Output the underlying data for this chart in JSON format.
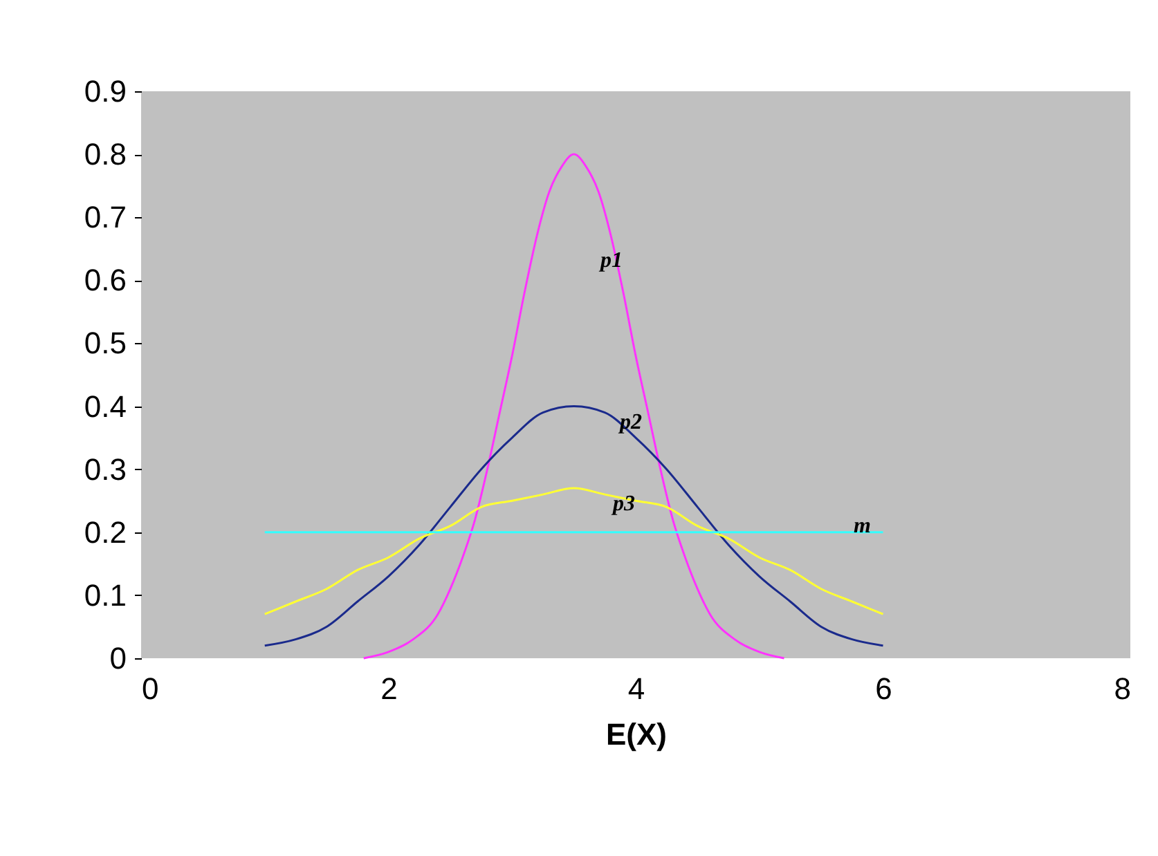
{
  "chart_data": {
    "type": "line",
    "xlabel": "E(X)",
    "xlim": [
      0,
      8
    ],
    "xticks": [
      0,
      2,
      4,
      6,
      8
    ],
    "ylim": [
      0,
      0.9
    ],
    "yticks": [
      0,
      0.1,
      0.2,
      0.3,
      0.4,
      0.5,
      0.6,
      0.7,
      0.8,
      0.9
    ],
    "grid": false,
    "legend": false,
    "marker": "none",
    "line_style": "solid",
    "series": [
      {
        "name": "p1",
        "color": "#ff33ff",
        "x": [
          1.8,
          2.0,
          2.2,
          2.4,
          2.5,
          2.6,
          2.7,
          2.8,
          2.9,
          3.0,
          3.1,
          3.2,
          3.3,
          3.4,
          3.5,
          3.6,
          3.7,
          3.8,
          3.9,
          4.0,
          4.1,
          4.2,
          4.3,
          4.4,
          4.5,
          4.6,
          4.8,
          5.0,
          5.2
        ],
        "values": [
          0.0,
          0.01,
          0.03,
          0.07,
          0.11,
          0.16,
          0.22,
          0.3,
          0.39,
          0.48,
          0.58,
          0.67,
          0.74,
          0.78,
          0.8,
          0.78,
          0.74,
          0.67,
          0.58,
          0.48,
          0.39,
          0.3,
          0.22,
          0.16,
          0.11,
          0.07,
          0.03,
          0.01,
          0.0
        ]
      },
      {
        "name": "p2",
        "color": "#1a2a8c",
        "x": [
          1.0,
          1.25,
          1.5,
          1.75,
          2.0,
          2.25,
          2.5,
          2.75,
          3.0,
          3.25,
          3.5,
          3.75,
          4.0,
          4.25,
          4.5,
          4.75,
          5.0,
          5.25,
          5.5,
          5.75,
          6.0
        ],
        "values": [
          0.02,
          0.03,
          0.05,
          0.09,
          0.13,
          0.18,
          0.24,
          0.3,
          0.35,
          0.39,
          0.4,
          0.39,
          0.35,
          0.3,
          0.24,
          0.18,
          0.13,
          0.09,
          0.05,
          0.03,
          0.02
        ]
      },
      {
        "name": "p3",
        "color": "#ffff33",
        "x": [
          1.0,
          1.25,
          1.5,
          1.75,
          2.0,
          2.25,
          2.5,
          2.75,
          3.0,
          3.25,
          3.5,
          3.75,
          4.0,
          4.25,
          4.5,
          4.75,
          5.0,
          5.25,
          5.5,
          5.75,
          6.0
        ],
        "values": [
          0.07,
          0.09,
          0.11,
          0.14,
          0.16,
          0.19,
          0.21,
          0.24,
          0.25,
          0.26,
          0.27,
          0.26,
          0.25,
          0.24,
          0.21,
          0.19,
          0.16,
          0.14,
          0.11,
          0.09,
          0.07
        ]
      },
      {
        "name": "m",
        "color": "#33ffff",
        "x": [
          1.0,
          6.0
        ],
        "values": [
          0.2,
          0.2
        ]
      }
    ]
  }
}
